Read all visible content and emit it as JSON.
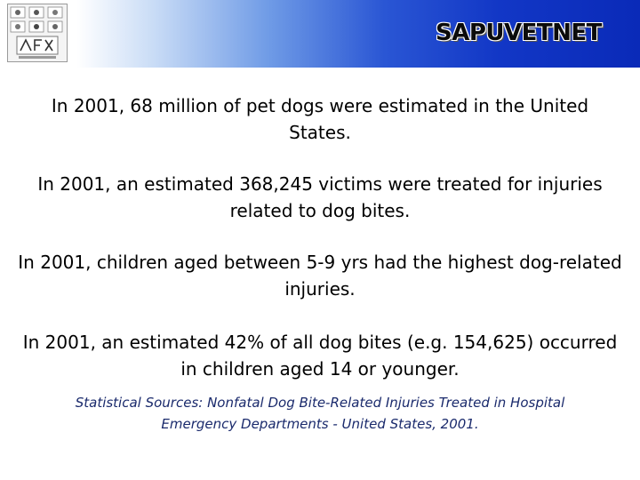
{
  "header": {
    "brand": "SAPUVETNET",
    "colors": {
      "band_start": "#ffffff",
      "band_end": "#0a2ab8"
    },
    "logo_icon": "sapuvetnet-logo-icon"
  },
  "stats": [
    "In 2001, 68 million of pet dogs were estimated in the United States.",
    "In 2001, an estimated 368,245 victims were treated for injuries related to dog bites.",
    "In 2001, children aged between 5-9 yrs had the highest dog-related injuries.",
    "In 2001, an estimated 42% of all dog bites (e.g. 154,625) occurred in children aged 14 or younger."
  ],
  "source": "Statistical Sources: Nonfatal Dog Bite-Related Injuries Treated in Hospital Emergency Departments - United States, 2001."
}
